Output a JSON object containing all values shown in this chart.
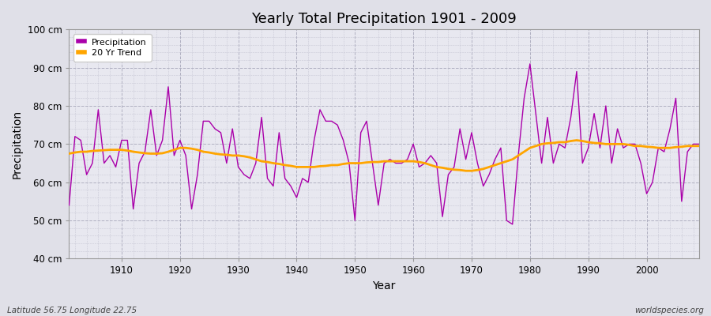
{
  "title": "Yearly Total Precipitation 1901 - 2009",
  "xlabel": "Year",
  "ylabel": "Precipitation",
  "footnote_left": "Latitude 56.75 Longitude 22.75",
  "footnote_right": "worldspecies.org",
  "ylim": [
    40,
    100
  ],
  "yticks": [
    40,
    50,
    60,
    70,
    80,
    90,
    100
  ],
  "ytick_labels": [
    "40 cm",
    "50 cm",
    "60 cm",
    "70 cm",
    "80 cm",
    "90 cm",
    "100 cm"
  ],
  "xlim": [
    1901,
    2009
  ],
  "xticks": [
    1910,
    1920,
    1930,
    1940,
    1950,
    1960,
    1970,
    1980,
    1990,
    2000
  ],
  "precip_color": "#AA00AA",
  "trend_color": "#FFA500",
  "fig_bg_color": "#E0E0E8",
  "plot_bg_color": "#E8E8F0",
  "legend_entries": [
    "Precipitation",
    "20 Yr Trend"
  ],
  "years": [
    1901,
    1902,
    1903,
    1904,
    1905,
    1906,
    1907,
    1908,
    1909,
    1910,
    1911,
    1912,
    1913,
    1914,
    1915,
    1916,
    1917,
    1918,
    1919,
    1920,
    1921,
    1922,
    1923,
    1924,
    1925,
    1926,
    1927,
    1928,
    1929,
    1930,
    1931,
    1932,
    1933,
    1934,
    1935,
    1936,
    1937,
    1938,
    1939,
    1940,
    1941,
    1942,
    1943,
    1944,
    1945,
    1946,
    1947,
    1948,
    1949,
    1950,
    1951,
    1952,
    1953,
    1954,
    1955,
    1956,
    1957,
    1958,
    1959,
    1960,
    1961,
    1962,
    1963,
    1964,
    1965,
    1966,
    1967,
    1968,
    1969,
    1970,
    1971,
    1972,
    1973,
    1974,
    1975,
    1976,
    1977,
    1978,
    1979,
    1980,
    1981,
    1982,
    1983,
    1984,
    1985,
    1986,
    1987,
    1988,
    1989,
    1990,
    1991,
    1992,
    1993,
    1994,
    1995,
    1996,
    1997,
    1998,
    1999,
    2000,
    2001,
    2002,
    2003,
    2004,
    2005,
    2006,
    2007,
    2008,
    2009
  ],
  "precip": [
    54,
    72,
    71,
    62,
    65,
    79,
    65,
    67,
    64,
    71,
    71,
    53,
    65,
    68,
    79,
    67,
    71,
    85,
    67,
    71,
    67,
    53,
    62,
    76,
    76,
    74,
    73,
    65,
    74,
    64,
    62,
    61,
    65,
    77,
    61,
    59,
    73,
    61,
    59,
    56,
    61,
    60,
    71,
    79,
    76,
    76,
    75,
    71,
    65,
    50,
    73,
    76,
    65,
    54,
    65,
    66,
    65,
    65,
    66,
    70,
    64,
    65,
    67,
    65,
    51,
    62,
    64,
    74,
    66,
    73,
    65,
    59,
    62,
    66,
    69,
    50,
    49,
    67,
    82,
    91,
    78,
    65,
    77,
    65,
    70,
    69,
    77,
    89,
    65,
    69,
    78,
    69,
    80,
    65,
    74,
    69,
    70,
    70,
    65,
    57,
    60,
    69,
    68,
    74,
    82,
    55,
    68,
    70,
    70
  ],
  "trend": [
    67.5,
    67.8,
    68.0,
    68.0,
    68.2,
    68.3,
    68.4,
    68.5,
    68.5,
    68.5,
    68.3,
    68.0,
    67.8,
    67.6,
    67.5,
    67.5,
    67.6,
    68.0,
    68.5,
    69.0,
    69.0,
    68.8,
    68.5,
    68.0,
    67.8,
    67.5,
    67.3,
    67.2,
    67.0,
    67.0,
    66.8,
    66.5,
    66.0,
    65.5,
    65.3,
    65.0,
    64.8,
    64.5,
    64.3,
    64.0,
    64.0,
    64.0,
    64.0,
    64.2,
    64.3,
    64.5,
    64.5,
    64.8,
    65.0,
    65.0,
    65.0,
    65.2,
    65.3,
    65.3,
    65.5,
    65.5,
    65.5,
    65.5,
    65.5,
    65.5,
    65.3,
    65.0,
    64.5,
    64.0,
    63.8,
    63.5,
    63.3,
    63.2,
    63.0,
    63.0,
    63.2,
    63.5,
    64.0,
    64.5,
    65.0,
    65.5,
    66.0,
    67.0,
    68.0,
    69.0,
    69.5,
    70.0,
    70.2,
    70.3,
    70.5,
    70.5,
    70.8,
    71.0,
    70.8,
    70.5,
    70.3,
    70.2,
    70.0,
    70.0,
    70.0,
    70.0,
    69.8,
    69.5,
    69.5,
    69.3,
    69.2,
    69.0,
    69.0,
    69.0,
    69.2,
    69.3,
    69.5,
    69.5,
    69.5
  ]
}
